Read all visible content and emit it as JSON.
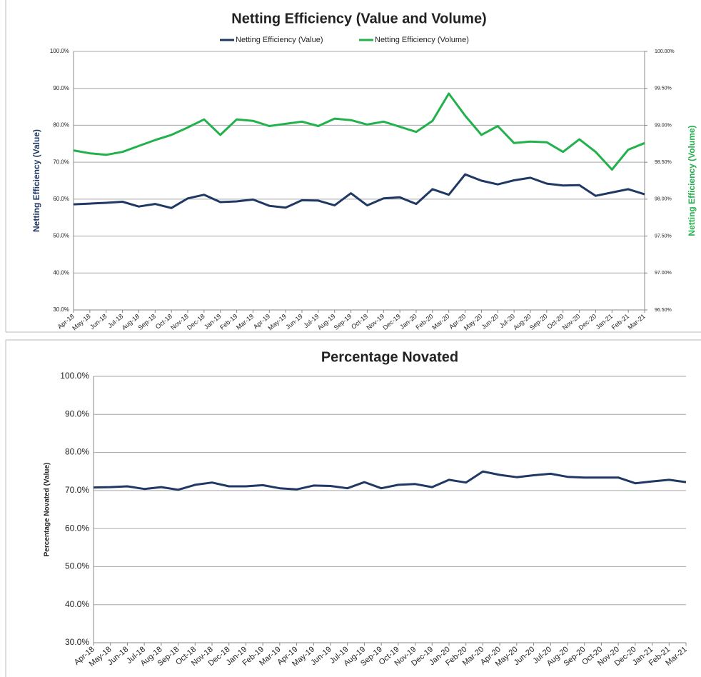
{
  "chart_data": [
    {
      "type": "line",
      "title": "Netting Efficiency (Value and Volume)",
      "categories": [
        "Apr-18",
        "May-18",
        "Jun-18",
        "Jul-18",
        "Aug-18",
        "Sep-18",
        "Oct-18",
        "Nov-18",
        "Dec-18",
        "Jan-19",
        "Feb-19",
        "Mar-19",
        "Apr-19",
        "May-19",
        "Jun-19",
        "Jul-19",
        "Aug-19",
        "Sep-19",
        "Oct-19",
        "Nov-19",
        "Dec-19",
        "Jan-20",
        "Feb-20",
        "Mar-20",
        "Apr-20",
        "May-20",
        "Jun-20",
        "Jul-20",
        "Aug-20",
        "Sep-20",
        "Oct-20",
        "Nov-20",
        "Dec-20",
        "Jan-21",
        "Feb-21",
        "Mar-21"
      ],
      "series": [
        {
          "name": "Netting Efficiency (Value)",
          "color": "#1f3864",
          "axis": "y",
          "values": [
            58.6,
            58.8,
            59.0,
            59.3,
            58.0,
            58.7,
            57.6,
            60.2,
            61.2,
            59.2,
            59.4,
            59.9,
            58.2,
            57.7,
            59.7,
            59.6,
            58.3,
            61.6,
            58.3,
            60.2,
            60.5,
            58.7,
            62.7,
            61.2,
            66.7,
            65.0,
            64.0,
            65.1,
            65.8,
            64.2,
            63.7,
            63.8,
            60.9,
            61.8,
            62.7,
            61.3
          ]
        },
        {
          "name": "Netting Efficiency (Volume)",
          "color": "#22b14c",
          "axis": "y2",
          "values": [
            98.66,
            98.62,
            98.6,
            98.64,
            98.72,
            98.8,
            98.87,
            98.97,
            99.08,
            98.87,
            99.08,
            99.06,
            98.99,
            99.02,
            99.05,
            98.99,
            99.09,
            99.07,
            99.01,
            99.05,
            98.98,
            98.91,
            99.06,
            99.43,
            99.13,
            98.87,
            98.99,
            98.76,
            98.78,
            98.77,
            98.64,
            98.81,
            98.64,
            98.4,
            98.67,
            98.76
          ]
        }
      ],
      "ylabel": "Netting Efficiency (Value)",
      "y2label": "Netting Efficiency (Volume)",
      "ylim": [
        30,
        100
      ],
      "yticks": [
        {
          "value": 30,
          "label": "30.0%"
        },
        {
          "value": 40,
          "label": "40.0%"
        },
        {
          "value": 50,
          "label": "50.0%"
        },
        {
          "value": 60,
          "label": "60.0%"
        },
        {
          "value": 70,
          "label": "70.0%"
        },
        {
          "value": 80,
          "label": "80.0%"
        },
        {
          "value": 90,
          "label": "90.0%"
        },
        {
          "value": 100,
          "label": "100.0%"
        }
      ],
      "y2lim": [
        96.5,
        100
      ],
      "y2ticks": [
        {
          "value": 96.5,
          "label": "96.50%"
        },
        {
          "value": 97,
          "label": "97.00%"
        },
        {
          "value": 97.5,
          "label": "97.50%"
        },
        {
          "value": 98,
          "label": "98.00%"
        },
        {
          "value": 98.5,
          "label": "98.50%"
        },
        {
          "value": 99,
          "label": "99.00%"
        },
        {
          "value": 99.5,
          "label": "99.50%"
        },
        {
          "value": 100,
          "label": "100.00%"
        }
      ],
      "grid": true,
      "legend": "top"
    },
    {
      "type": "line",
      "title": "Percentage Novated",
      "categories": [
        "Apr-18",
        "May-18",
        "Jun-18",
        "Jul-18",
        "Aug-18",
        "Sep-18",
        "Oct-18",
        "Nov-18",
        "Dec-18",
        "Jan-19",
        "Feb-19",
        "Mar-19",
        "Apr-19",
        "May-19",
        "Jun-19",
        "Jul-19",
        "Aug-19",
        "Sep-19",
        "Oct-19",
        "Nov-19",
        "Dec-19",
        "Jan-20",
        "Feb-20",
        "Mar-20",
        "Apr-20",
        "May-20",
        "Jun-20",
        "Jul-20",
        "Aug-20",
        "Sep-20",
        "Oct-20",
        "Nov-20",
        "Dec-20",
        "Jan-21",
        "Feb-21",
        "Mar-21"
      ],
      "values": [
        70.8,
        70.9,
        71.1,
        70.4,
        70.9,
        70.2,
        71.5,
        72.1,
        71.1,
        71.1,
        71.4,
        70.6,
        70.3,
        71.3,
        71.2,
        70.6,
        72.2,
        70.6,
        71.5,
        71.7,
        70.9,
        72.8,
        72.1,
        75.0,
        74.1,
        73.5,
        74.0,
        74.4,
        73.6,
        73.4,
        73.4,
        73.4,
        71.9,
        72.4,
        72.8,
        72.2
      ],
      "color": "#1f3864",
      "ylabel": "Percentage Novated (Value)",
      "ylim": [
        30,
        100
      ],
      "yticks": [
        {
          "value": 30,
          "label": "30.0%"
        },
        {
          "value": 40,
          "label": "40.0%"
        },
        {
          "value": 50,
          "label": "50.0%"
        },
        {
          "value": 60,
          "label": "60.0%"
        },
        {
          "value": 70,
          "label": "70.0%"
        },
        {
          "value": 80,
          "label": "80.0%"
        },
        {
          "value": 90,
          "label": "90.0%"
        },
        {
          "value": 100,
          "label": "100.0%"
        }
      ],
      "grid": true
    }
  ]
}
